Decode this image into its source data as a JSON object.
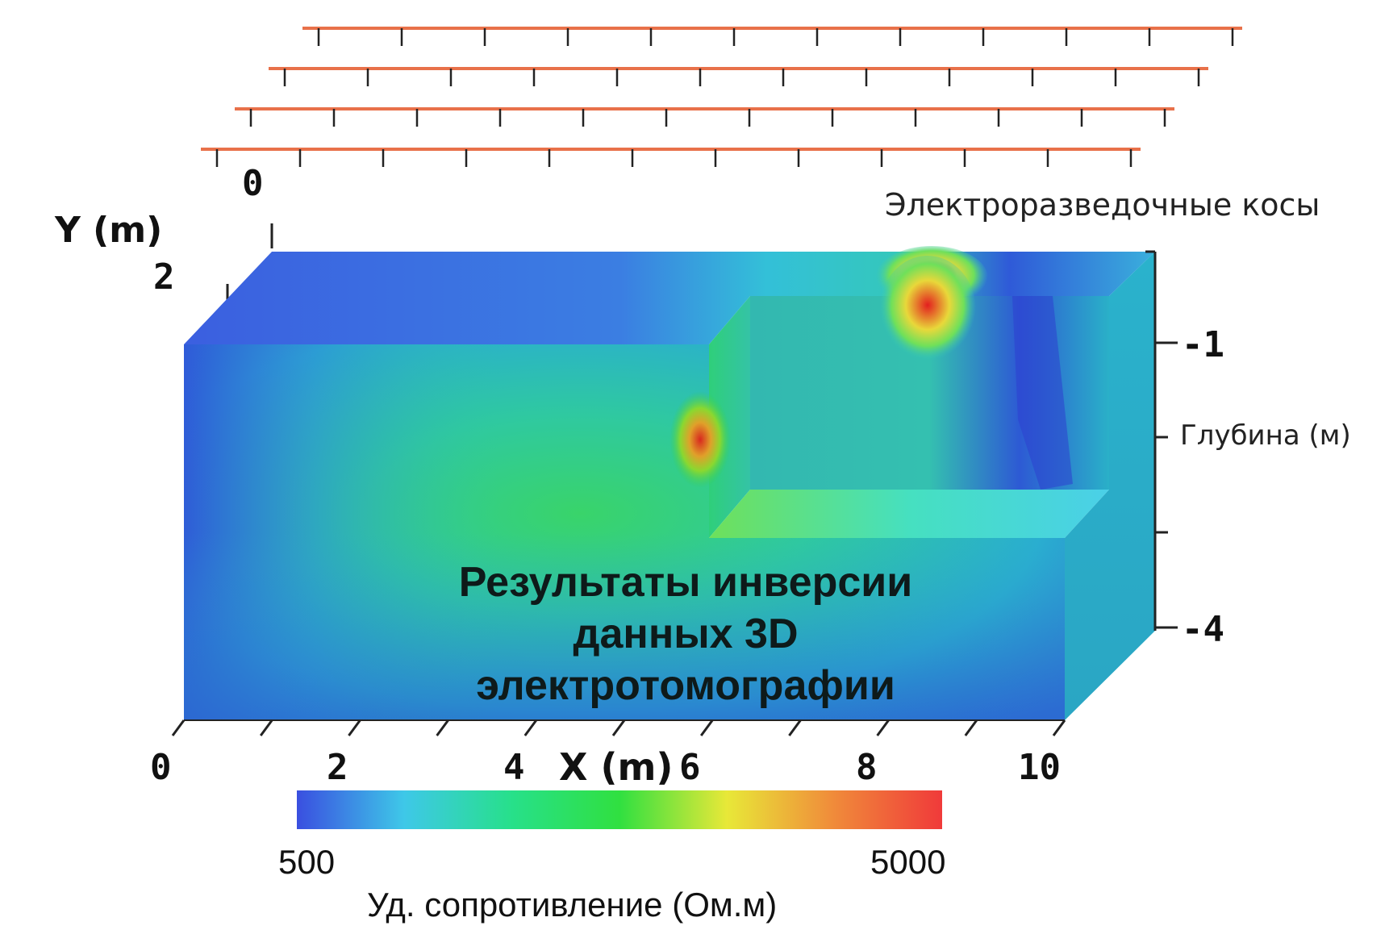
{
  "labels": {
    "cables": "Электроразведочные косы",
    "y_axis": "Y (m)",
    "x_axis": "X (m)",
    "depth": "Глубина (м)",
    "title_line1": "Результаты инверсии",
    "title_line2": "данных 3D",
    "title_line3": "электротомографии"
  },
  "y_ticks": {
    "t0": "0",
    "t2": "2"
  },
  "x_ticks": [
    "0",
    "2",
    "4",
    "6",
    "8",
    "10"
  ],
  "depth_ticks": {
    "d1": "-1",
    "d4": "-4"
  },
  "colorbar": {
    "min_label": "500",
    "max_label": "5000",
    "title": "Уд. сопротивление (Ом.м)",
    "colors": [
      "#3a4fe0",
      "#3ec8e8",
      "#27e08a",
      "#30e040",
      "#e8e838",
      "#f08a3a",
      "#f03a3a"
    ]
  },
  "colors": {
    "cable": "#e8714a",
    "low": "#2f4fd8",
    "mid": "#2fd38a",
    "high": "#f02a2a"
  }
}
